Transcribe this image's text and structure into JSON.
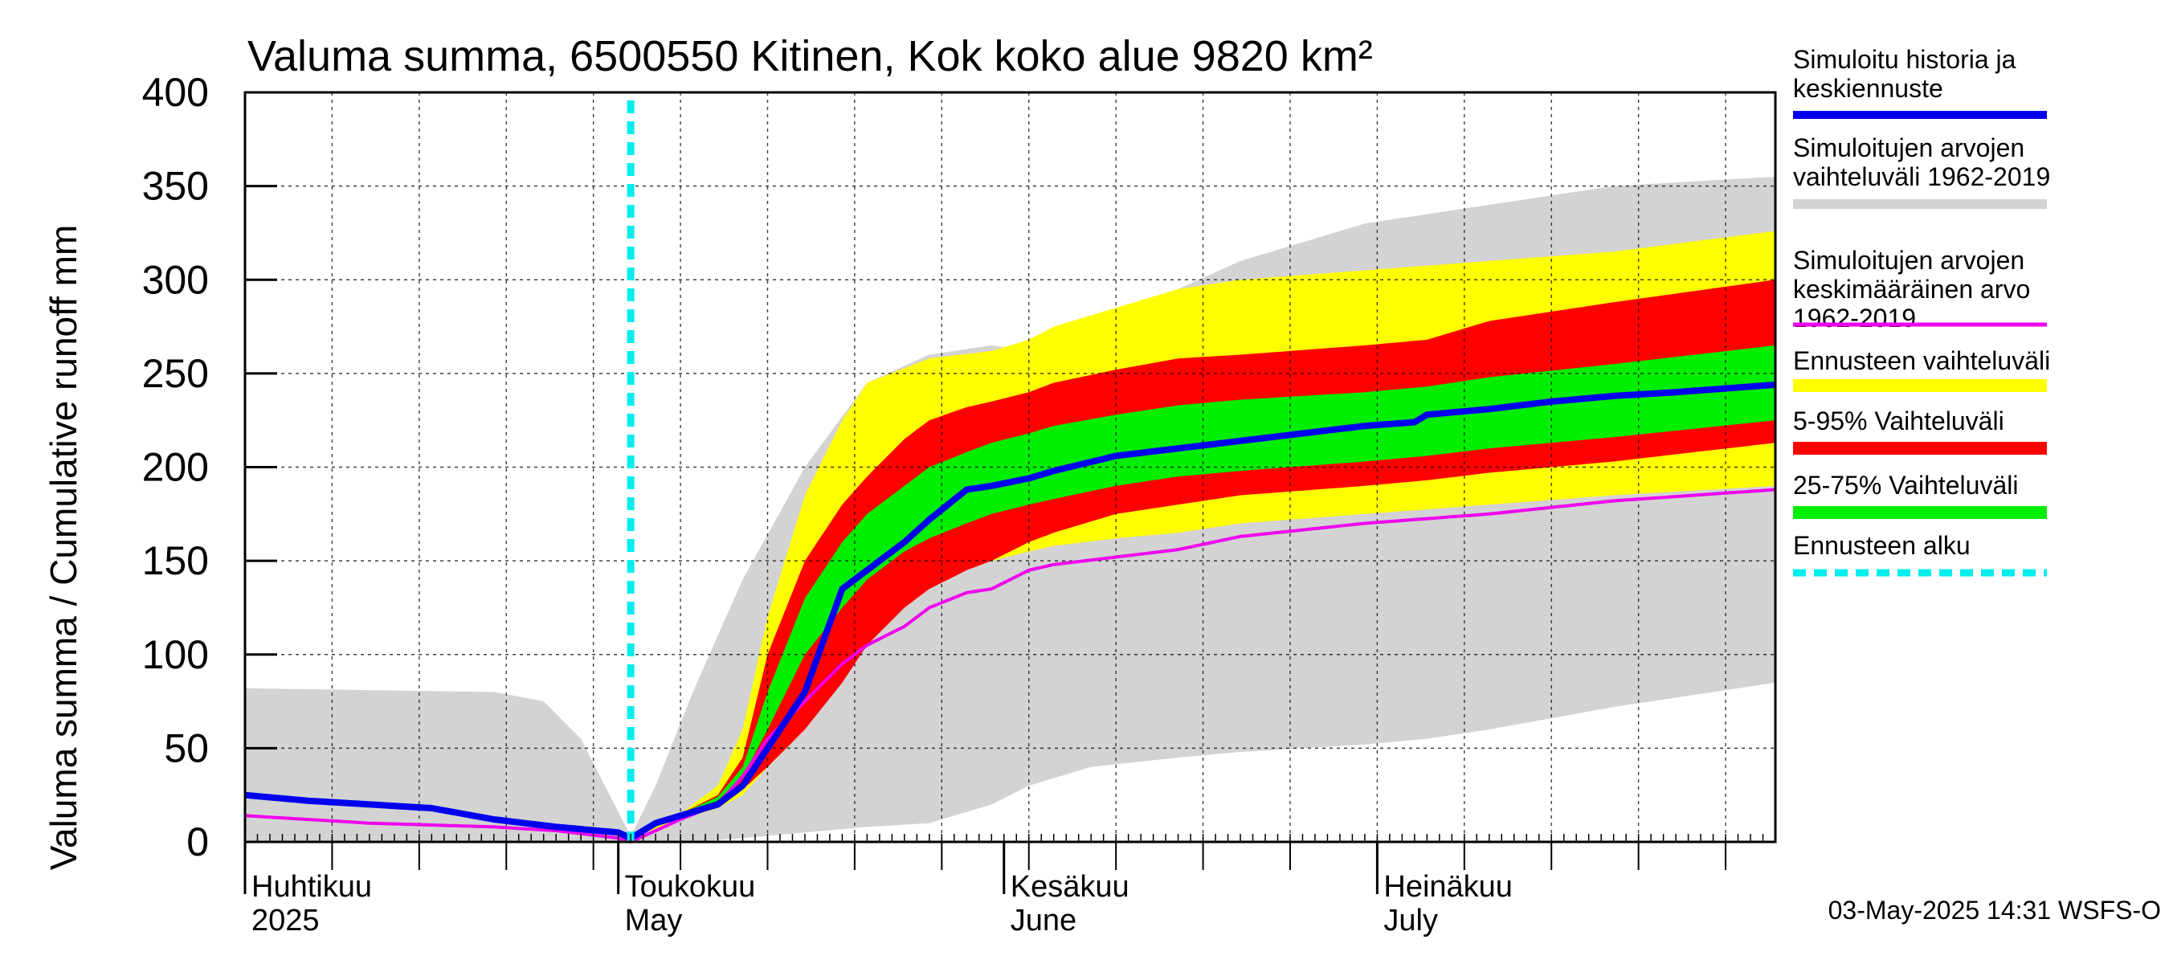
{
  "chart_data": {
    "type": "area",
    "title": "Valuma summa, 6500550 Kitinen, Kok koko alue 9820 km²",
    "ylabel": "Valuma summa / Cumulative runoff    mm",
    "ylim": [
      0,
      400
    ],
    "yticks": [
      "0",
      "50",
      "100",
      "150",
      "200",
      "250",
      "300",
      "350",
      "400"
    ],
    "x_range_days": [
      0,
      123
    ],
    "x_start_date": "2025-03-31",
    "month_labels": [
      {
        "day": 1,
        "fi": "Huhtikuu",
        "en": "2025"
      },
      {
        "day": 31,
        "fi": "Toukokuu",
        "en": "May"
      },
      {
        "day": 62,
        "fi": "Kesäkuu",
        "en": "June"
      },
      {
        "day": 92,
        "fi": "Heinäkuu",
        "en": "July"
      }
    ],
    "forecast_start_day": 31,
    "footer": "03-May-2025 14:31 WSFS-O",
    "colors": {
      "hist_range": "#d3d3d3",
      "forecast_range": "#ffff00",
      "p5_95": "#ff0000",
      "p25_75": "#00ee00",
      "median": "#0000ee",
      "mean": "#ee00ee",
      "forecast_start": "#00eeee"
    },
    "legend": [
      {
        "key": "median",
        "label": "Simuloitu historia ja\nkeskiennuste"
      },
      {
        "key": "hist_range",
        "label": "Simuloitujen arvojen\nvaihteluväli 1962-2019"
      },
      {
        "key": "mean",
        "label": "Simuloitujen arvojen\nkeskimääräinen arvo\n   1962-2019"
      },
      {
        "key": "forecast_range",
        "label": "Ennusteen vaihteluväli"
      },
      {
        "key": "p5_95",
        "label": "5-95% Vaihteluväli"
      },
      {
        "key": "p25_75",
        "label": "25-75% Vaihteluväli"
      },
      {
        "key": "forecast_start",
        "label": "Ennusteen alku"
      }
    ],
    "hist_range": {
      "days": [
        0,
        20,
        24,
        27,
        31,
        33,
        36,
        40,
        45,
        50,
        55,
        60,
        63,
        68,
        75,
        80,
        85,
        90,
        95,
        100,
        110,
        123
      ],
      "upper": [
        82,
        80,
        75,
        55,
        3,
        30,
        80,
        140,
        200,
        245,
        260,
        265,
        262,
        270,
        295,
        310,
        320,
        330,
        335,
        340,
        350,
        355
      ],
      "lower": [
        0,
        0,
        0,
        0,
        0,
        0,
        0,
        2,
        5,
        8,
        10,
        20,
        30,
        40,
        45,
        48,
        50,
        52,
        55,
        60,
        72,
        85
      ]
    },
    "forecast_range": {
      "days": [
        31,
        35,
        38,
        40,
        42,
        45,
        48,
        50,
        55,
        60,
        63,
        65,
        70,
        75,
        80,
        90,
        100,
        110,
        123
      ],
      "upper": [
        2,
        15,
        30,
        60,
        120,
        185,
        225,
        245,
        258,
        262,
        268,
        275,
        285,
        295,
        300,
        305,
        310,
        315,
        326
      ],
      "lower": [
        2,
        12,
        18,
        25,
        40,
        60,
        90,
        115,
        140,
        150,
        155,
        158,
        162,
        165,
        170,
        175,
        180,
        185,
        190
      ]
    },
    "p5_95": {
      "days": [
        31,
        35,
        38,
        40,
        42,
        45,
        48,
        50,
        53,
        55,
        58,
        60,
        63,
        65,
        70,
        75,
        80,
        90,
        95,
        100,
        110,
        123
      ],
      "upper": [
        2,
        15,
        25,
        45,
        100,
        150,
        180,
        195,
        215,
        225,
        232,
        235,
        240,
        245,
        252,
        258,
        260,
        265,
        268,
        278,
        288,
        300
      ],
      "lower": [
        2,
        14,
        20,
        28,
        40,
        60,
        85,
        105,
        125,
        135,
        145,
        150,
        160,
        165,
        175,
        180,
        185,
        190,
        193,
        197,
        203,
        213
      ]
    },
    "p25_75": {
      "days": [
        31,
        35,
        38,
        40,
        42,
        45,
        48,
        50,
        53,
        55,
        58,
        60,
        63,
        65,
        70,
        75,
        80,
        90,
        95,
        100,
        110,
        123
      ],
      "upper": [
        2,
        15,
        24,
        40,
        80,
        130,
        160,
        175,
        190,
        200,
        208,
        213,
        218,
        222,
        228,
        233,
        236,
        240,
        243,
        248,
        255,
        265
      ],
      "lower": [
        2,
        14,
        22,
        35,
        60,
        100,
        125,
        140,
        155,
        162,
        170,
        175,
        180,
        183,
        190,
        195,
        198,
        203,
        206,
        210,
        216,
        225
      ]
    },
    "median": {
      "days": [
        0,
        5,
        10,
        15,
        20,
        25,
        30,
        31,
        32,
        33,
        35,
        38,
        40,
        42,
        45,
        48,
        50,
        53,
        55,
        58,
        60,
        63,
        65,
        70,
        75,
        80,
        85,
        90,
        94,
        95,
        100,
        105,
        110,
        115,
        123
      ],
      "values": [
        25,
        22,
        20,
        18,
        12,
        8,
        5,
        2,
        6,
        10,
        14,
        20,
        30,
        50,
        80,
        135,
        145,
        160,
        172,
        188,
        190,
        194,
        198,
        206,
        210,
        214,
        218,
        222,
        224,
        228,
        231,
        235,
        238,
        240,
        244
      ]
    },
    "mean": {
      "days": [
        0,
        5,
        10,
        15,
        20,
        25,
        30,
        31,
        33,
        35,
        38,
        40,
        42,
        45,
        48,
        50,
        53,
        55,
        58,
        60,
        63,
        65,
        70,
        75,
        80,
        90,
        100,
        110,
        123
      ],
      "values": [
        14,
        12,
        10,
        9,
        8,
        6,
        2,
        0,
        6,
        12,
        20,
        35,
        55,
        75,
        95,
        105,
        115,
        125,
        133,
        135,
        145,
        148,
        152,
        156,
        163,
        170,
        175,
        182,
        188
      ]
    }
  }
}
